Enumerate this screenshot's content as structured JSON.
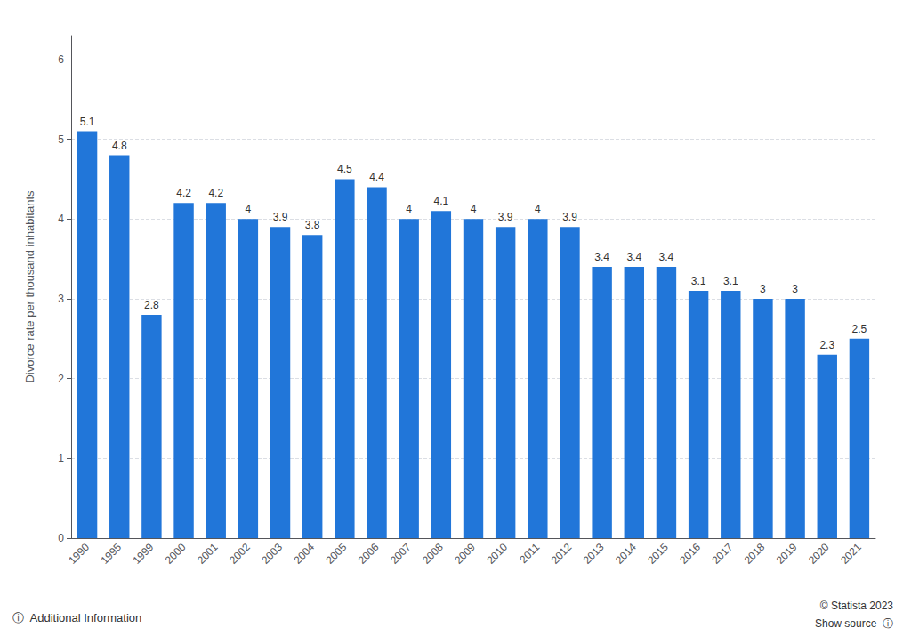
{
  "chart_data": {
    "type": "bar",
    "categories": [
      "1990",
      "1995",
      "1999",
      "2000",
      "2001",
      "2002",
      "2003",
      "2004",
      "2005",
      "2006",
      "2007",
      "2008",
      "2009",
      "2010",
      "2011",
      "2012",
      "2013",
      "2014",
      "2015",
      "2016",
      "2017",
      "2018",
      "2019",
      "2020",
      "2021"
    ],
    "values": [
      5.1,
      4.8,
      2.8,
      4.2,
      4.2,
      4.0,
      3.9,
      3.8,
      4.5,
      4.4,
      4.0,
      4.1,
      4.0,
      3.9,
      4.0,
      3.9,
      3.4,
      3.4,
      3.4,
      3.1,
      3.1,
      3.0,
      3.0,
      2.3,
      2.5
    ],
    "color": "#2176d9",
    "ylabel": "Divorce rate per thousand inhabitants",
    "ylim": [
      0,
      6.3
    ],
    "yticks": [
      0,
      1,
      2,
      3,
      4,
      5,
      6
    ],
    "grid": true,
    "data_labels": true,
    "annotations": [
      "ⓘ  Additional Information",
      "© Statista 2023",
      "Show source  ⓘ"
    ]
  }
}
